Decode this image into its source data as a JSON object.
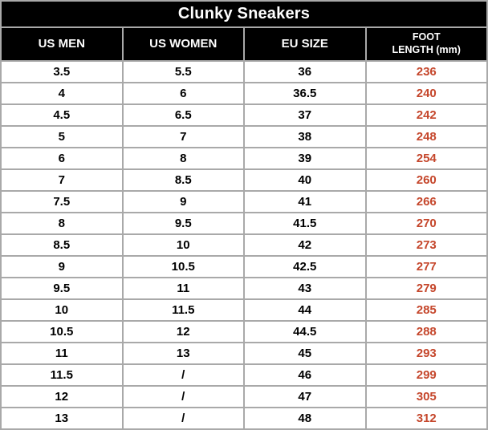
{
  "title": "Clunky Sneakers",
  "columns": [
    "US MEN",
    "US WOMEN",
    "EU SIZE",
    "FOOT\nLENGTH (mm)"
  ],
  "rows": [
    [
      "3.5",
      "5.5",
      "36",
      "236"
    ],
    [
      "4",
      "6",
      "36.5",
      "240"
    ],
    [
      "4.5",
      "6.5",
      "37",
      "242"
    ],
    [
      "5",
      "7",
      "38",
      "248"
    ],
    [
      "6",
      "8",
      "39",
      "254"
    ],
    [
      "7",
      "8.5",
      "40",
      "260"
    ],
    [
      "7.5",
      "9",
      "41",
      "266"
    ],
    [
      "8",
      "9.5",
      "41.5",
      "270"
    ],
    [
      "8.5",
      "10",
      "42",
      "273"
    ],
    [
      "9",
      "10.5",
      "42.5",
      "277"
    ],
    [
      "9.5",
      "11",
      "43",
      "279"
    ],
    [
      "10",
      "11.5",
      "44",
      "285"
    ],
    [
      "10.5",
      "12",
      "44.5",
      "288"
    ],
    [
      "11",
      "13",
      "45",
      "293"
    ],
    [
      "11.5",
      "/",
      "46",
      "299"
    ],
    [
      "12",
      "/",
      "47",
      "305"
    ],
    [
      "13",
      "/",
      "48",
      "312"
    ]
  ],
  "colors": {
    "header_bg": "#000000",
    "header_text": "#ffffff",
    "border": "#a9a9a9",
    "foot_length_text": "#c5462b",
    "cell_text": "#000000",
    "row_bg": "#ffffff"
  },
  "chart_data": {
    "type": "table",
    "title": "Clunky Sneakers",
    "columns": [
      "US MEN",
      "US WOMEN",
      "EU SIZE",
      "FOOT LENGTH (mm)"
    ],
    "rows": [
      [
        "3.5",
        "5.5",
        "36",
        "236"
      ],
      [
        "4",
        "6",
        "36.5",
        "240"
      ],
      [
        "4.5",
        "6.5",
        "37",
        "242"
      ],
      [
        "5",
        "7",
        "38",
        "248"
      ],
      [
        "6",
        "8",
        "39",
        "254"
      ],
      [
        "7",
        "8.5",
        "40",
        "260"
      ],
      [
        "7.5",
        "9",
        "41",
        "266"
      ],
      [
        "8",
        "9.5",
        "41.5",
        "270"
      ],
      [
        "8.5",
        "10",
        "42",
        "273"
      ],
      [
        "9",
        "10.5",
        "42.5",
        "277"
      ],
      [
        "9.5",
        "11",
        "43",
        "279"
      ],
      [
        "10",
        "11.5",
        "44",
        "285"
      ],
      [
        "10.5",
        "12",
        "44.5",
        "288"
      ],
      [
        "11",
        "13",
        "45",
        "293"
      ],
      [
        "11.5",
        "/",
        "46",
        "299"
      ],
      [
        "12",
        "/",
        "47",
        "305"
      ],
      [
        "13",
        "/",
        "48",
        "312"
      ]
    ]
  }
}
